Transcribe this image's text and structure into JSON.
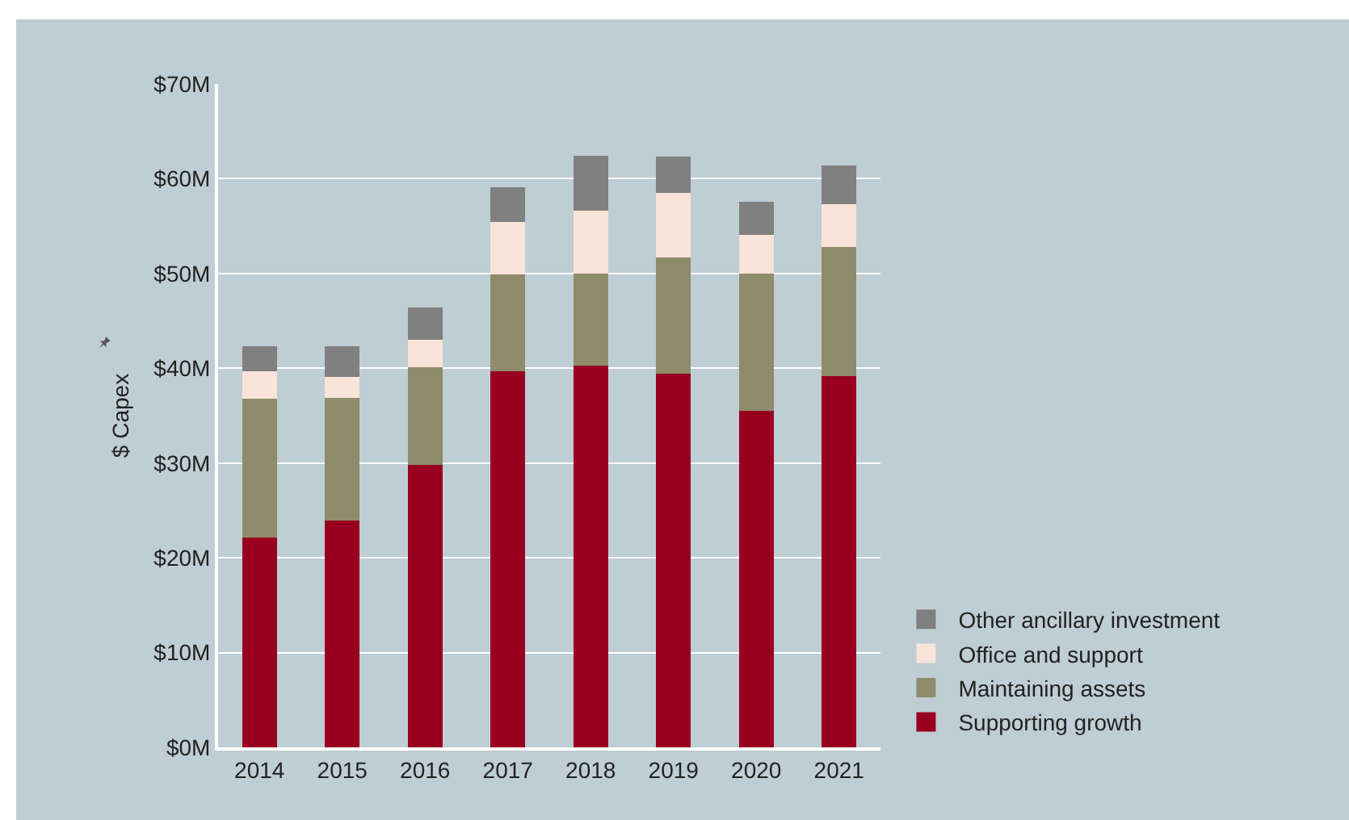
{
  "chart_data": {
    "type": "bar",
    "stacked": true,
    "ylabel": "$ Capex",
    "categories": [
      "2014",
      "2015",
      "2016",
      "2017",
      "2018",
      "2019",
      "2020",
      "2021"
    ],
    "series": [
      {
        "name": "Supporting growth",
        "color": "#990020",
        "values": [
          22.1,
          23.9,
          29.8,
          39.7,
          40.3,
          39.4,
          35.5,
          39.2
        ]
      },
      {
        "name": "Maintaining assets",
        "color": "#8f8c6c",
        "values": [
          14.7,
          13.0,
          10.3,
          10.2,
          9.7,
          12.3,
          14.5,
          13.6
        ]
      },
      {
        "name": "Office and support",
        "color": "#f8e4d8",
        "values": [
          2.9,
          2.2,
          2.9,
          5.5,
          6.6,
          6.8,
          4.1,
          4.5
        ]
      },
      {
        "name": "Other ancillary investment",
        "color": "#808080",
        "values": [
          2.6,
          3.2,
          3.4,
          3.7,
          5.8,
          3.8,
          3.5,
          4.1
        ]
      }
    ],
    "ylim": [
      0,
      70
    ],
    "yticks": [
      {
        "value": 0,
        "label": "$0M"
      },
      {
        "value": 10,
        "label": "$10M"
      },
      {
        "value": 20,
        "label": "$20M"
      },
      {
        "value": 30,
        "label": "$30M"
      },
      {
        "value": 40,
        "label": "$40M"
      },
      {
        "value": 50,
        "label": "$50M"
      },
      {
        "value": 60,
        "label": "$60M"
      },
      {
        "value": 70,
        "label": "$70M"
      }
    ],
    "grid": "y",
    "legend": "bottom right"
  }
}
